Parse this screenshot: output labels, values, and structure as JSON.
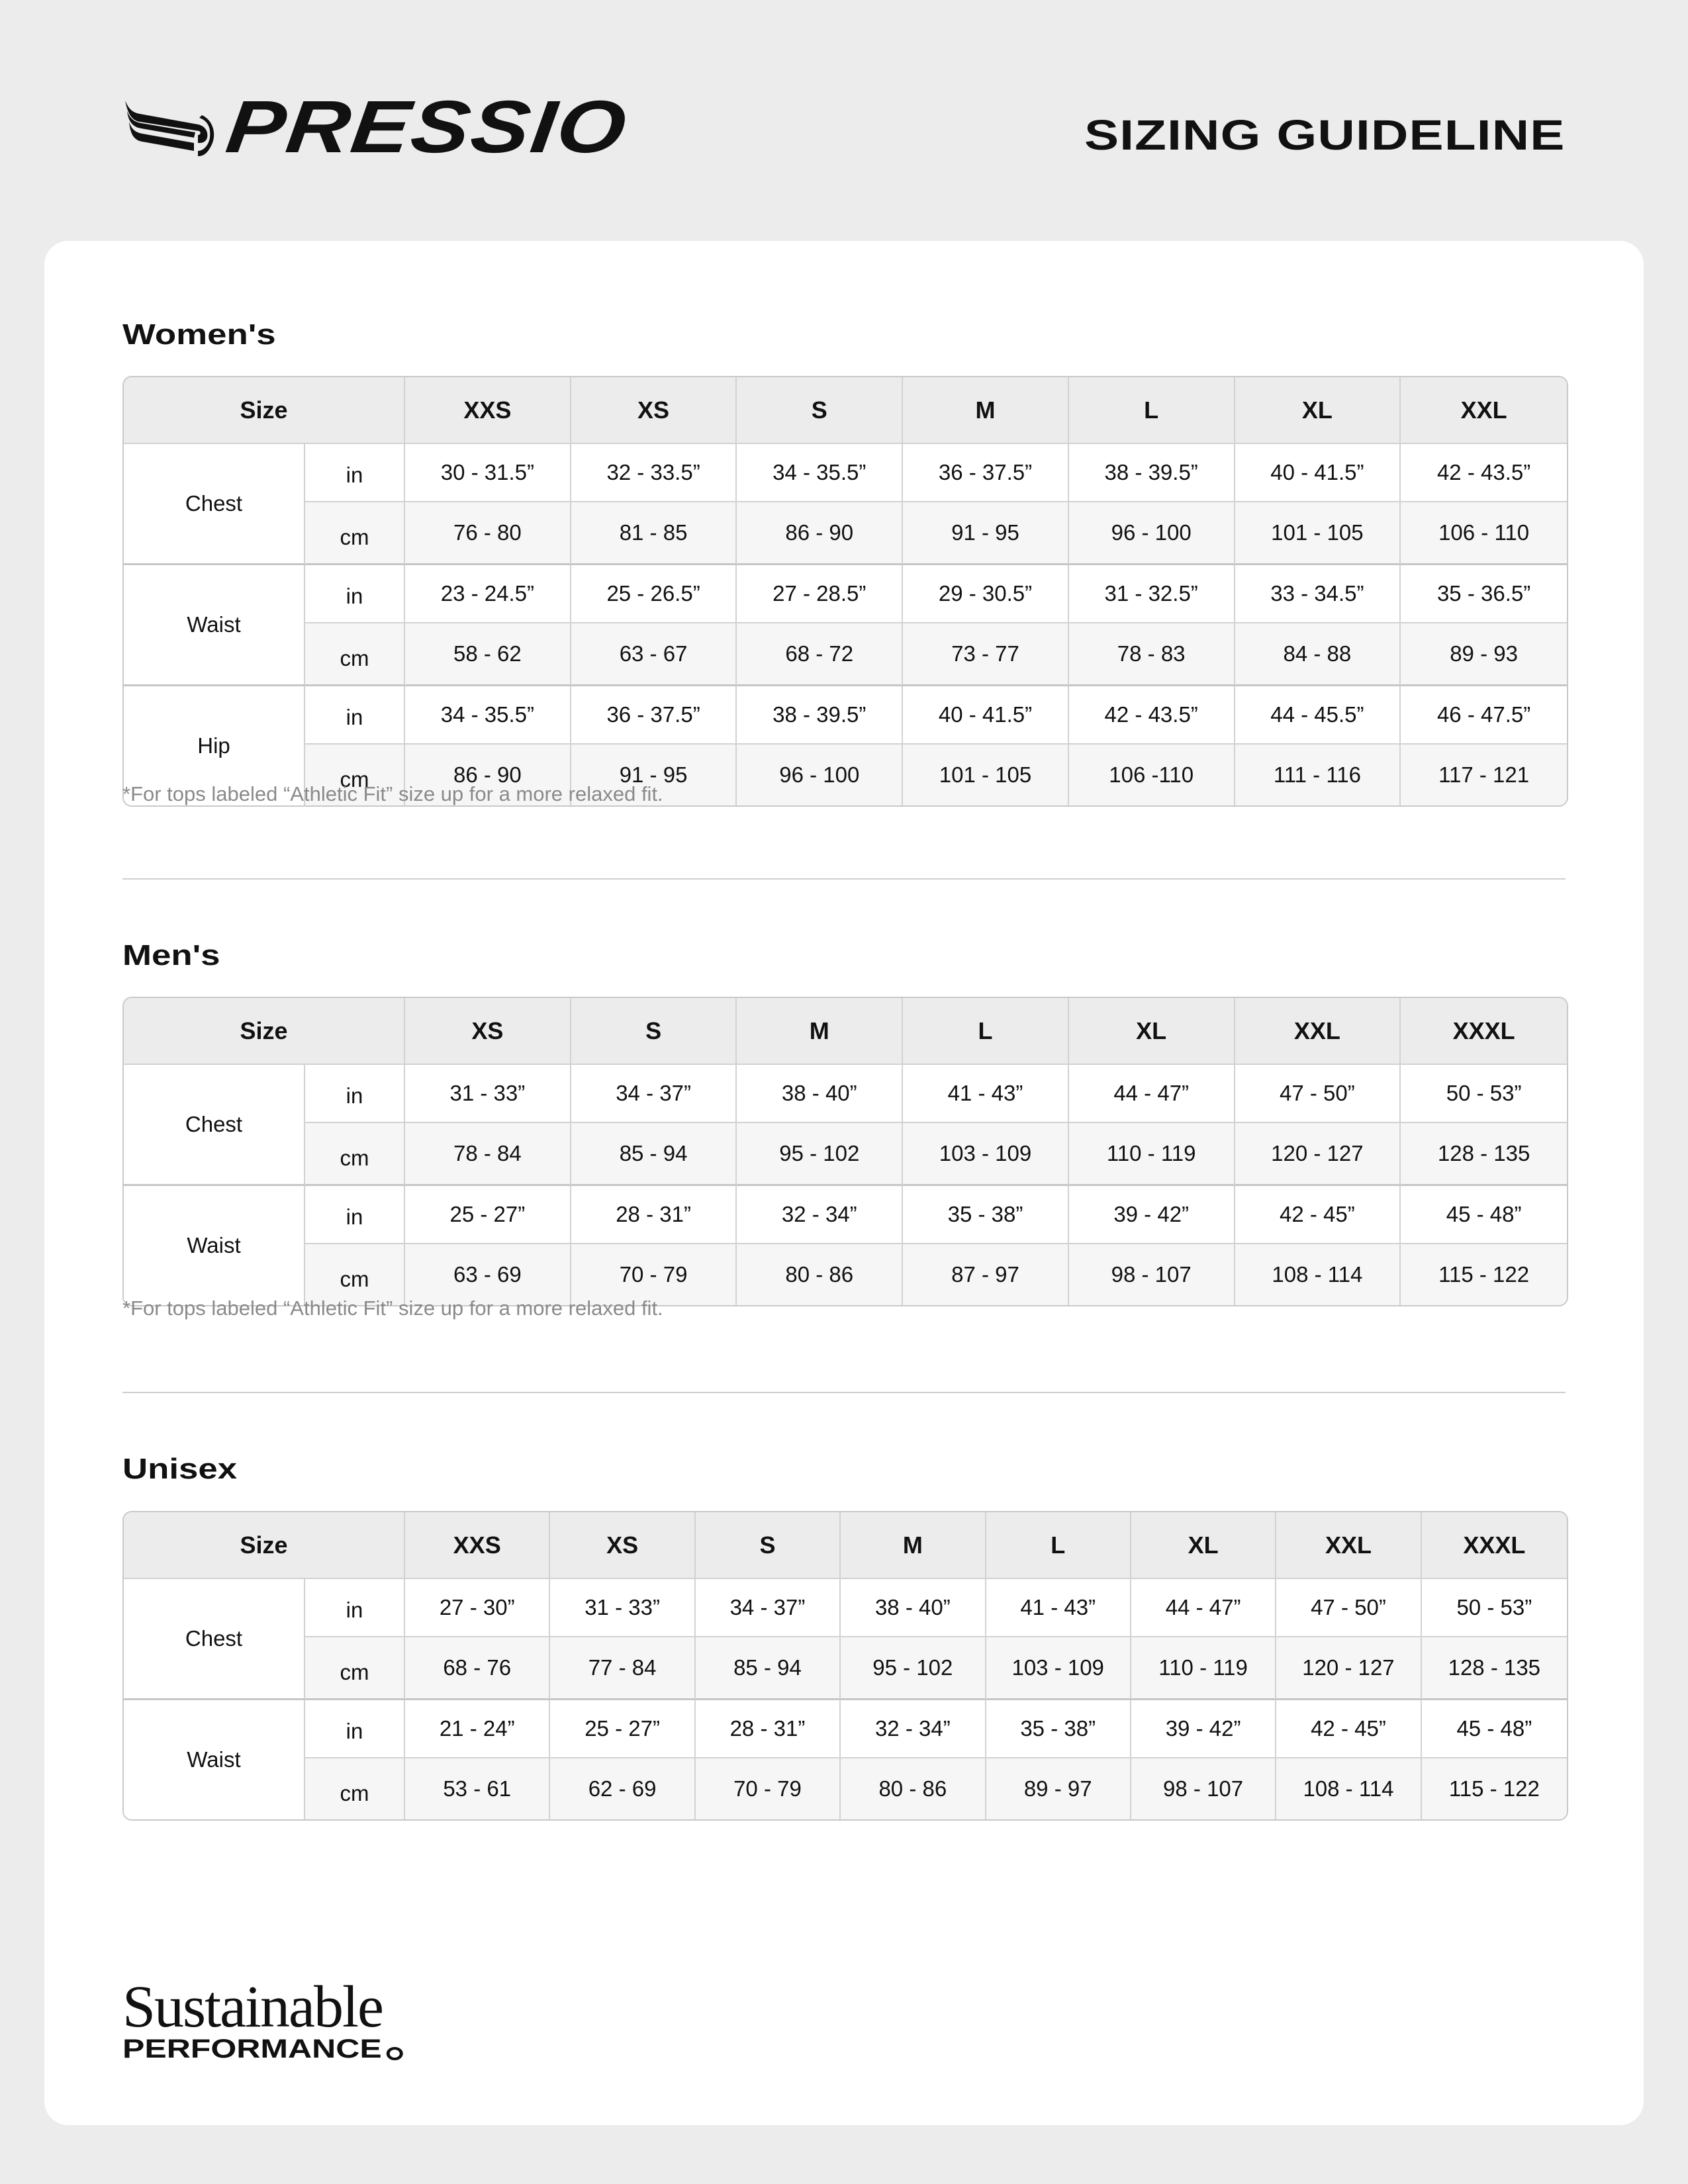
{
  "header": {
    "brand": "PRESSIO",
    "title": "SIZING GUIDELINE"
  },
  "sections": [
    {
      "title": "Women's",
      "header_label": "Size",
      "sizes": [
        "XXS",
        "XS",
        "S",
        "M",
        "L",
        "XL",
        "XXL"
      ],
      "measurements": [
        {
          "name": "Chest",
          "in": [
            "30 - 31.5”",
            "32 - 33.5”",
            "34 - 35.5”",
            "36 - 37.5”",
            "38 - 39.5”",
            "40 - 41.5”",
            "42 - 43.5”"
          ],
          "cm": [
            "76 - 80",
            "81 - 85",
            "86 - 90",
            "91 - 95",
            "96 - 100",
            "101 - 105",
            "106 - 110"
          ]
        },
        {
          "name": "Waist",
          "in": [
            "23 - 24.5”",
            "25 - 26.5”",
            "27 - 28.5”",
            "29 - 30.5”",
            "31 - 32.5”",
            "33 - 34.5”",
            "35 - 36.5”"
          ],
          "cm": [
            "58 - 62",
            "63 - 67",
            "68 - 72",
            "73 - 77",
            "78 - 83",
            "84 - 88",
            "89 - 93"
          ]
        },
        {
          "name": "Hip",
          "in": [
            "34 - 35.5”",
            "36 - 37.5”",
            "38 - 39.5”",
            "40 - 41.5”",
            "42 - 43.5”",
            "44 - 45.5”",
            "46 - 47.5”"
          ],
          "cm": [
            "86 - 90",
            "91 - 95",
            "96 - 100",
            "101 - 105",
            "106 -110",
            "111 - 116",
            "117 - 121"
          ]
        }
      ],
      "note": "*For tops labeled “Athletic Fit” size up for a more relaxed fit."
    },
    {
      "title": "Men's",
      "header_label": "Size",
      "sizes": [
        "XS",
        "S",
        "M",
        "L",
        "XL",
        "XXL",
        "XXXL"
      ],
      "measurements": [
        {
          "name": "Chest",
          "in": [
            "31 - 33”",
            "34 - 37”",
            "38 - 40”",
            "41 - 43”",
            "44 - 47”",
            "47 - 50”",
            "50 - 53”"
          ],
          "cm": [
            "78 - 84",
            "85 - 94",
            "95 - 102",
            "103 - 109",
            "110 - 119",
            "120 - 127",
            "128 - 135"
          ]
        },
        {
          "name": "Waist",
          "in": [
            "25 - 27”",
            "28 - 31”",
            "32 - 34”",
            "35 - 38”",
            "39 - 42”",
            "42 - 45”",
            "45 - 48”"
          ],
          "cm": [
            "63 - 69",
            "70 - 79",
            "80 - 86",
            "87 - 97",
            "98 - 107",
            "108 - 114",
            "115 - 122"
          ]
        }
      ],
      "note": "*For tops labeled “Athletic Fit” size up for a more relaxed fit."
    },
    {
      "title": "Unisex",
      "header_label": "Size",
      "sizes": [
        "XXS",
        "XS",
        "S",
        "M",
        "L",
        "XL",
        "XXL",
        "XXXL"
      ],
      "measurements": [
        {
          "name": "Chest",
          "in": [
            "27 - 30”",
            "31 - 33”",
            "34 - 37”",
            "38 - 40”",
            "41 - 43”",
            "44 - 47”",
            "47 - 50”",
            "50 - 53”"
          ],
          "cm": [
            "68 - 76",
            "77 - 84",
            "85 - 94",
            "95 - 102",
            "103 - 109",
            "110 - 119",
            "120 - 127",
            "128 - 135"
          ]
        },
        {
          "name": "Waist",
          "in": [
            "21 - 24”",
            "25 - 27”",
            "28 - 31”",
            "32 - 34”",
            "35 - 38”",
            "39 - 42”",
            "42 - 45”",
            "45 - 48”"
          ],
          "cm": [
            "53 - 61",
            "62 - 69",
            "70 - 79",
            "80 - 86",
            "89 - 97",
            "98 - 107",
            "108 - 114",
            "115 - 122"
          ]
        }
      ]
    }
  ],
  "units": {
    "in": "in",
    "cm": "cm"
  },
  "footer": {
    "line1": "Sustainable",
    "line2": "PERFORMANCE"
  },
  "colors": {
    "background": "#ececec",
    "card": "#ffffff",
    "header_row": "#ececec",
    "alt_row": "#f6f6f6",
    "note": "#8a8a8a"
  }
}
